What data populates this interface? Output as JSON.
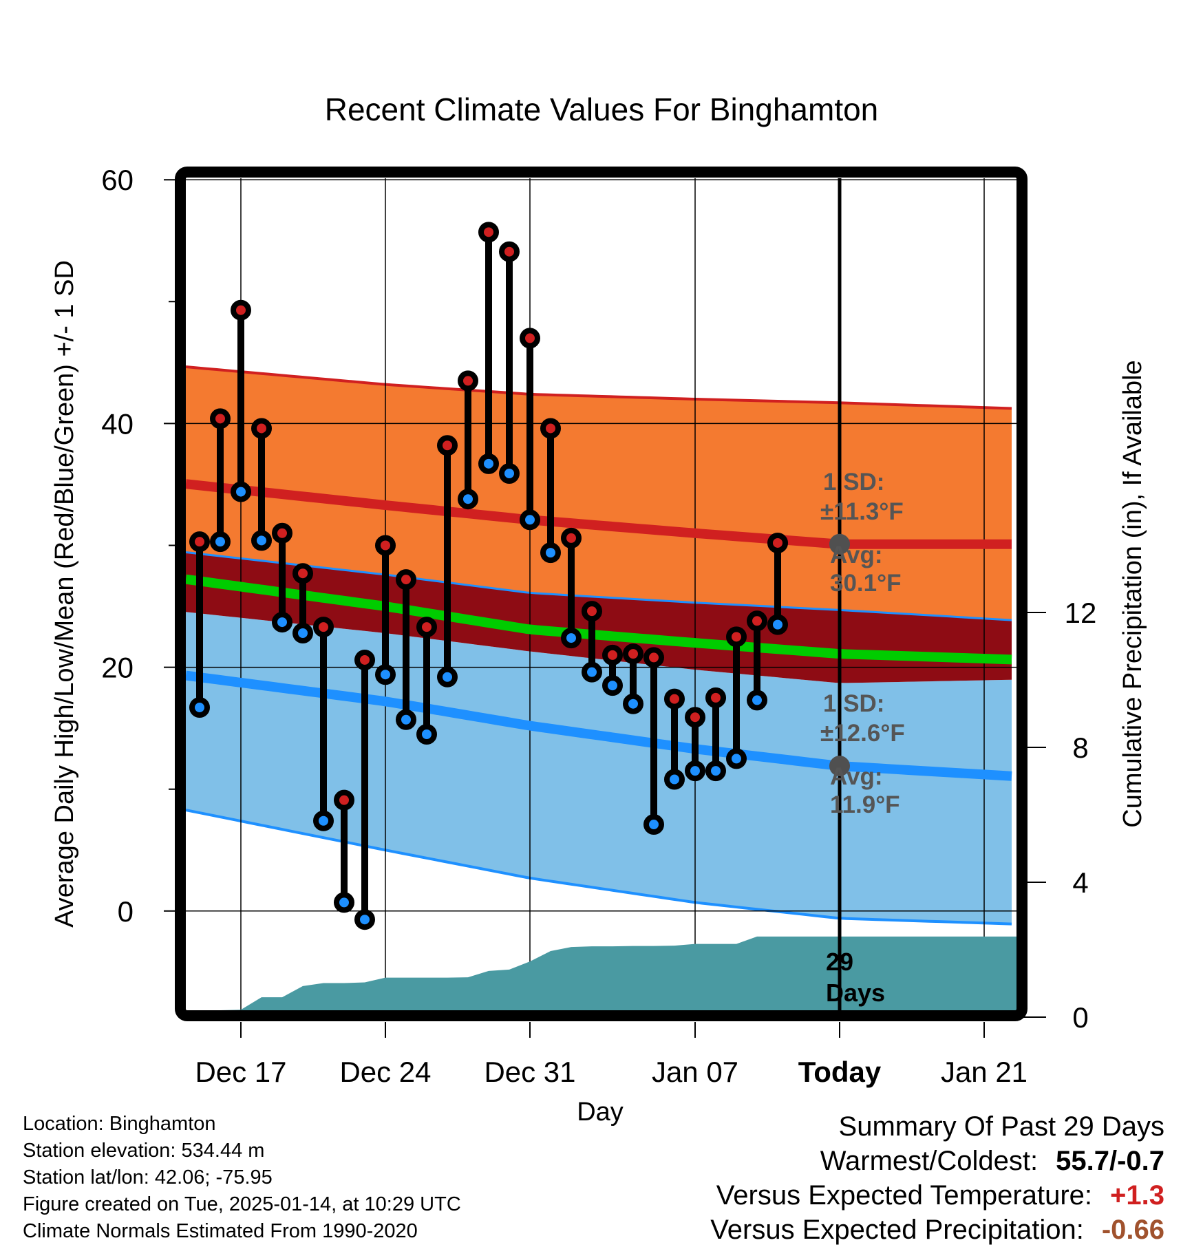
{
  "chart_data": {
    "type": "line",
    "title": "Recent Climate Values For Binghamton",
    "xlabel": "Day",
    "ylabel": "Average Daily High/Low/Mean (Red/Blue/Green) +/- 1 SD",
    "y2label": "Cumulative Precipitation (in), If Available",
    "ylim": [
      -8.2,
      60
    ],
    "y2lim": [
      0,
      20
    ],
    "x_range": [
      "Dec 14",
      "Jan 23"
    ],
    "grid": true,
    "x_ticks": [
      {
        "day": "Dec 17",
        "label": "Dec 17",
        "bold": false
      },
      {
        "day": "Dec 24",
        "label": "Dec 24",
        "bold": false
      },
      {
        "day": "Dec 31",
        "label": "Dec 31",
        "bold": false
      },
      {
        "day": "Jan 07",
        "label": "Jan 07",
        "bold": false
      },
      {
        "day": "Jan 14",
        "label": "Today",
        "bold": true
      },
      {
        "day": "Jan 21",
        "label": "Jan 21",
        "bold": false
      }
    ],
    "y_ticks": [
      0,
      20,
      40,
      60
    ],
    "y_minor_ticks": [
      10,
      30,
      50
    ],
    "y2_ticks": [
      0,
      4,
      8,
      12
    ],
    "days": [
      "Dec 15",
      "Dec 16",
      "Dec 17",
      "Dec 18",
      "Dec 19",
      "Dec 20",
      "Dec 21",
      "Dec 22",
      "Dec 23",
      "Dec 24",
      "Dec 25",
      "Dec 26",
      "Dec 27",
      "Dec 28",
      "Dec 29",
      "Dec 30",
      "Dec 31",
      "Jan 01",
      "Jan 02",
      "Jan 03",
      "Jan 04",
      "Jan 05",
      "Jan 06",
      "Jan 07",
      "Jan 08",
      "Jan 09",
      "Jan 10",
      "Jan 11",
      "Jan 12"
    ],
    "series": [
      {
        "name": "Observed High (°F)",
        "color": "#D02020",
        "values": [
          30.3,
          40.4,
          49.3,
          39.6,
          31.0,
          27.7,
          23.3,
          9.1,
          20.6,
          30.0,
          27.2,
          23.3,
          38.2,
          43.5,
          55.7,
          54.1,
          47.0,
          39.6,
          30.6,
          24.6,
          21.0,
          21.1,
          20.8,
          17.4,
          15.9,
          17.5,
          22.5,
          23.8,
          30.2
        ]
      },
      {
        "name": "Observed Low (°F)",
        "color": "#1E90FF",
        "values": [
          16.7,
          30.3,
          34.4,
          30.4,
          23.7,
          22.8,
          7.4,
          0.7,
          -0.7,
          19.4,
          15.7,
          14.5,
          19.2,
          33.8,
          36.7,
          35.9,
          32.1,
          29.4,
          22.4,
          19.6,
          18.5,
          17.0,
          7.1,
          10.8,
          11.5,
          11.5,
          12.5,
          17.3,
          23.5
        ]
      },
      {
        "name": "Cumulative Precipitation (in)",
        "color": "#4A9AA2",
        "axis": "right",
        "values": [
          0.2,
          0.2,
          0.22,
          0.59,
          0.59,
          0.92,
          1.01,
          1.01,
          1.03,
          1.17,
          1.17,
          1.17,
          1.17,
          1.18,
          1.37,
          1.41,
          1.65,
          1.96,
          2.08,
          2.1,
          2.1,
          2.11,
          2.11,
          2.12,
          2.17,
          2.17,
          2.17,
          2.39,
          2.39
        ],
        "extends_to": "Jan 23"
      }
    ],
    "normals": {
      "dates": [
        "Dec 14",
        "Dec 24",
        "Dec 31",
        "Jan 07",
        "Jan 14",
        "Jan 23"
      ],
      "high_upper": [
        44.7,
        43.2,
        42.4,
        42.0,
        41.7,
        41.2
      ],
      "high_mean": [
        35.1,
        33.3,
        32.1,
        31.0,
        30.1,
        30.1
      ],
      "high_lower": [
        29.5,
        27.6,
        26.1,
        25.3,
        24.7,
        23.8
      ],
      "overall_mean": [
        27.3,
        25.0,
        23.1,
        22.0,
        21.1,
        20.6
      ],
      "low_upper": [
        24.6,
        22.8,
        21.3,
        19.8,
        18.7,
        19.0
      ],
      "low_mean": [
        19.4,
        17.2,
        15.2,
        13.3,
        11.9,
        11.0
      ],
      "low_lower": [
        8.4,
        5.0,
        2.7,
        0.7,
        -0.6,
        -1.1
      ]
    },
    "colors": {
      "high_band": "#F47A30",
      "overlap_band": "#8E0C14",
      "low_band": "#80C0E8",
      "high_line": "#D02020",
      "low_line": "#1E90FF",
      "mean_line": "#00CC00",
      "precip": "#4A9AA2",
      "marker_today": "#505050"
    },
    "annotations": {
      "today": "Jan 14",
      "high_sd_label": "1 SD:",
      "high_sd_value": "±11.3°F",
      "high_avg_label": "Avg:",
      "high_avg_value": "30.1°F",
      "high_avg": 30.1,
      "low_sd_label": "1 SD:",
      "low_sd_value": "±12.6°F",
      "low_avg_label": "Avg:",
      "low_avg_value": "11.9°F",
      "low_avg": 11.9,
      "days_count": "29",
      "days_word": "Days"
    }
  },
  "footer": {
    "location": "Location: Binghamton",
    "elevation": "Station elevation: 534.44 m",
    "latlon": "Station lat/lon: 42.06; -75.95",
    "created": "Figure created on Tue, 2025-01-14, at 10:29 UTC",
    "normals": "Climate Normals Estimated From 1990-2020"
  },
  "summary": {
    "heading": "Summary Of Past 29 Days",
    "warmest_coldest_label": "Warmest/Coldest:",
    "warmest_coldest_value": "55.7/-0.7",
    "temp_label": "Versus Expected Temperature:",
    "temp_value": "+1.3",
    "temp_color": "#D02020",
    "precip_label": "Versus Expected Precipitation:",
    "precip_value": "-0.66",
    "precip_color": "#A0522D"
  }
}
